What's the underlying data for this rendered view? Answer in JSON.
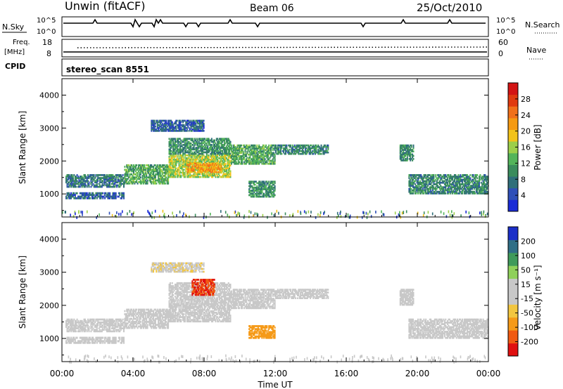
{
  "header": {
    "station": "Unwin (fitACF)",
    "beam": "Beam 06",
    "date": "25/Oct/2010"
  },
  "panels": {
    "nsky": {
      "left_label": "N.Sky",
      "right_label": "N.Search",
      "left_ticks": [
        "10^5",
        "10^0"
      ],
      "right_ticks": [
        "10^5",
        "10^0"
      ]
    },
    "freq": {
      "left_label_1": "Freq.",
      "left_label_2": "[MHz]",
      "right_label": "Nave",
      "left_ticks": [
        "18",
        "8"
      ],
      "right_ticks": [
        "60",
        "0"
      ]
    },
    "cpid": {
      "label": "CPID",
      "value": "stereo_scan 8551"
    }
  },
  "colors": {
    "power_scale": [
      "#1a2bd6",
      "#2f4fb8",
      "#2f6f7a",
      "#3a8c5c",
      "#53b45a",
      "#9ccf4a",
      "#f2c31a",
      "#f59a12",
      "#f0701a",
      "#e03a10",
      "#d31414"
    ],
    "velocity_scale": [
      "#e01010",
      "#f05a12",
      "#f59a18",
      "#f2c640",
      "#c8c8c8",
      "#c8c8c8",
      "#8fd05a",
      "#3f9a5a",
      "#2f6e86",
      "#1b2fc8"
    ]
  },
  "chart_data": [
    {
      "type": "heatmap",
      "name": "power",
      "ylabel": "Slant Range [km]",
      "y_ticks": [
        "1000",
        "2000",
        "3000",
        "4000"
      ],
      "ylim": [
        300,
        4500
      ],
      "xlim_hours": [
        0,
        24
      ],
      "colorbar": {
        "label": "Power [dB]",
        "range": [
          0,
          32
        ],
        "ticks": [
          "4",
          "8",
          "12",
          "16",
          "20",
          "24",
          "28"
        ]
      },
      "echo_bands": [
        {
          "t0": 0.2,
          "t1": 3.5,
          "r0": 1200,
          "r1": 1600,
          "value": 8
        },
        {
          "t0": 0.2,
          "t1": 3.5,
          "r0": 850,
          "r1": 1050,
          "value": 6
        },
        {
          "t0": 3.5,
          "t1": 6.0,
          "r0": 1300,
          "r1": 1900,
          "value": 12
        },
        {
          "t0": 6.0,
          "t1": 9.5,
          "r0": 1500,
          "r1": 2200,
          "value": 16
        },
        {
          "t0": 7.0,
          "t1": 9.0,
          "r0": 1650,
          "r1": 1950,
          "value": 22
        },
        {
          "t0": 6.0,
          "t1": 9.5,
          "r0": 2200,
          "r1": 2700,
          "value": 10
        },
        {
          "t0": 9.5,
          "t1": 12.0,
          "r0": 1900,
          "r1": 2500,
          "value": 12
        },
        {
          "t0": 10.5,
          "t1": 12.0,
          "r0": 900,
          "r1": 1400,
          "value": 10
        },
        {
          "t0": 12.0,
          "t1": 15.0,
          "r0": 2200,
          "r1": 2500,
          "value": 9
        },
        {
          "t0": 5.0,
          "t1": 8.0,
          "r0": 2900,
          "r1": 3250,
          "value": 6
        },
        {
          "t0": 19.0,
          "t1": 19.8,
          "r0": 2000,
          "r1": 2500,
          "value": 10
        },
        {
          "t0": 19.5,
          "t1": 24.0,
          "r0": 1000,
          "r1": 1600,
          "value": 9
        }
      ]
    },
    {
      "type": "heatmap",
      "name": "velocity",
      "ylabel": "Slant Range [km]",
      "xlabel": "Time UT",
      "x_ticks": [
        "00:00",
        "04:00",
        "08:00",
        "12:00",
        "16:00",
        "20:00",
        "00:00"
      ],
      "y_ticks": [
        "1000",
        "2000",
        "3000",
        "4000"
      ],
      "ylim": [
        300,
        4500
      ],
      "xlim_hours": [
        0,
        24
      ],
      "colorbar": {
        "label": "Velocity [m s⁻¹]",
        "ticks": [
          "200",
          "100",
          "50",
          "15",
          "-15",
          "-50",
          "-100",
          "-200"
        ]
      },
      "echo_bands": [
        {
          "t0": 0.2,
          "t1": 3.5,
          "r0": 1200,
          "r1": 1600,
          "value": 0
        },
        {
          "t0": 0.2,
          "t1": 3.5,
          "r0": 850,
          "r1": 1050,
          "value": 0
        },
        {
          "t0": 3.5,
          "t1": 6.0,
          "r0": 1300,
          "r1": 1900,
          "value": -20
        },
        {
          "t0": 6.0,
          "t1": 9.5,
          "r0": 1500,
          "r1": 2200,
          "value": -30
        },
        {
          "t0": 6.0,
          "t1": 9.5,
          "r0": 2200,
          "r1": 2700,
          "value": 0
        },
        {
          "t0": 7.3,
          "t1": 8.6,
          "r0": 2300,
          "r1": 2800,
          "value": -200
        },
        {
          "t0": 9.5,
          "t1": 12.0,
          "r0": 1900,
          "r1": 2500,
          "value": 0
        },
        {
          "t0": 10.5,
          "t1": 12.0,
          "r0": 1000,
          "r1": 1400,
          "value": -120
        },
        {
          "t0": 12.0,
          "t1": 15.0,
          "r0": 2200,
          "r1": 2500,
          "value": 0
        },
        {
          "t0": 5.0,
          "t1": 8.0,
          "r0": 3000,
          "r1": 3300,
          "value": -40
        },
        {
          "t0": 19.0,
          "t1": 19.8,
          "r0": 2000,
          "r1": 2500,
          "value": 0
        },
        {
          "t0": 19.5,
          "t1": 24.0,
          "r0": 1000,
          "r1": 1600,
          "value": 0
        }
      ]
    }
  ]
}
